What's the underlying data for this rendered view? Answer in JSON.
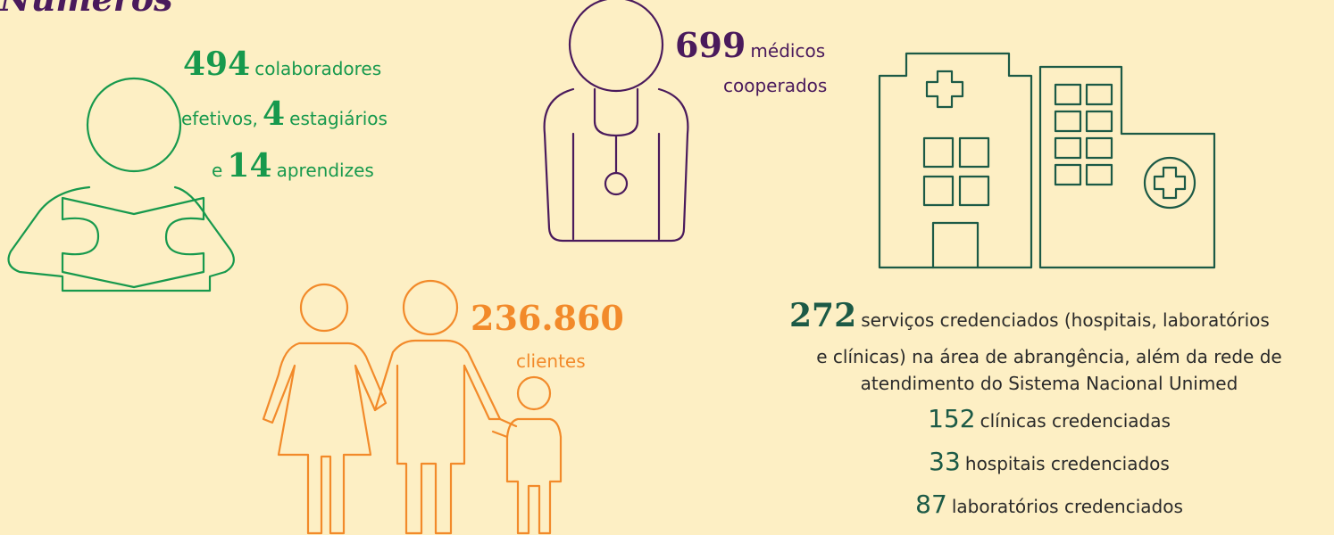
{
  "title": "Números",
  "collaborators": {
    "count": "494",
    "label": "colaboradores",
    "line2_prefix": "efetivos,",
    "interns": "4",
    "interns_label": "estagiários",
    "line3_prefix": "e",
    "apprentices": "14",
    "apprentices_label": "aprendizes"
  },
  "doctors": {
    "count": "699",
    "label": "médicos",
    "label2": "cooperados"
  },
  "clients": {
    "count": "236.860",
    "label": "clientes"
  },
  "services": {
    "count": "272",
    "lines": [
      "serviços credenciados (hospitais, laboratórios",
      "e clínicas) na área de abrangência, além da rede de",
      "atendimento do Sistema Nacional Unimed"
    ],
    "items": [
      {
        "count": "152",
        "label": "clínicas credenciadas"
      },
      {
        "count": "33",
        "label": "hospitais credenciados"
      },
      {
        "count": "87",
        "label": "laboratórios credenciados"
      }
    ]
  }
}
